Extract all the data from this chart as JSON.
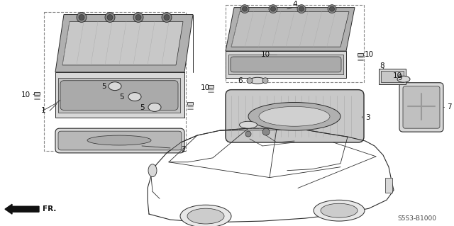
{
  "part_number": "S5S3-B1000",
  "bg_color": "#ffffff",
  "lc": "#2a2a2a",
  "gray_light": "#d8d8d8",
  "gray_mid": "#b0b0b0",
  "gray_dark": "#888888",
  "fig_w": 6.4,
  "fig_h": 3.19,
  "dpi": 100
}
